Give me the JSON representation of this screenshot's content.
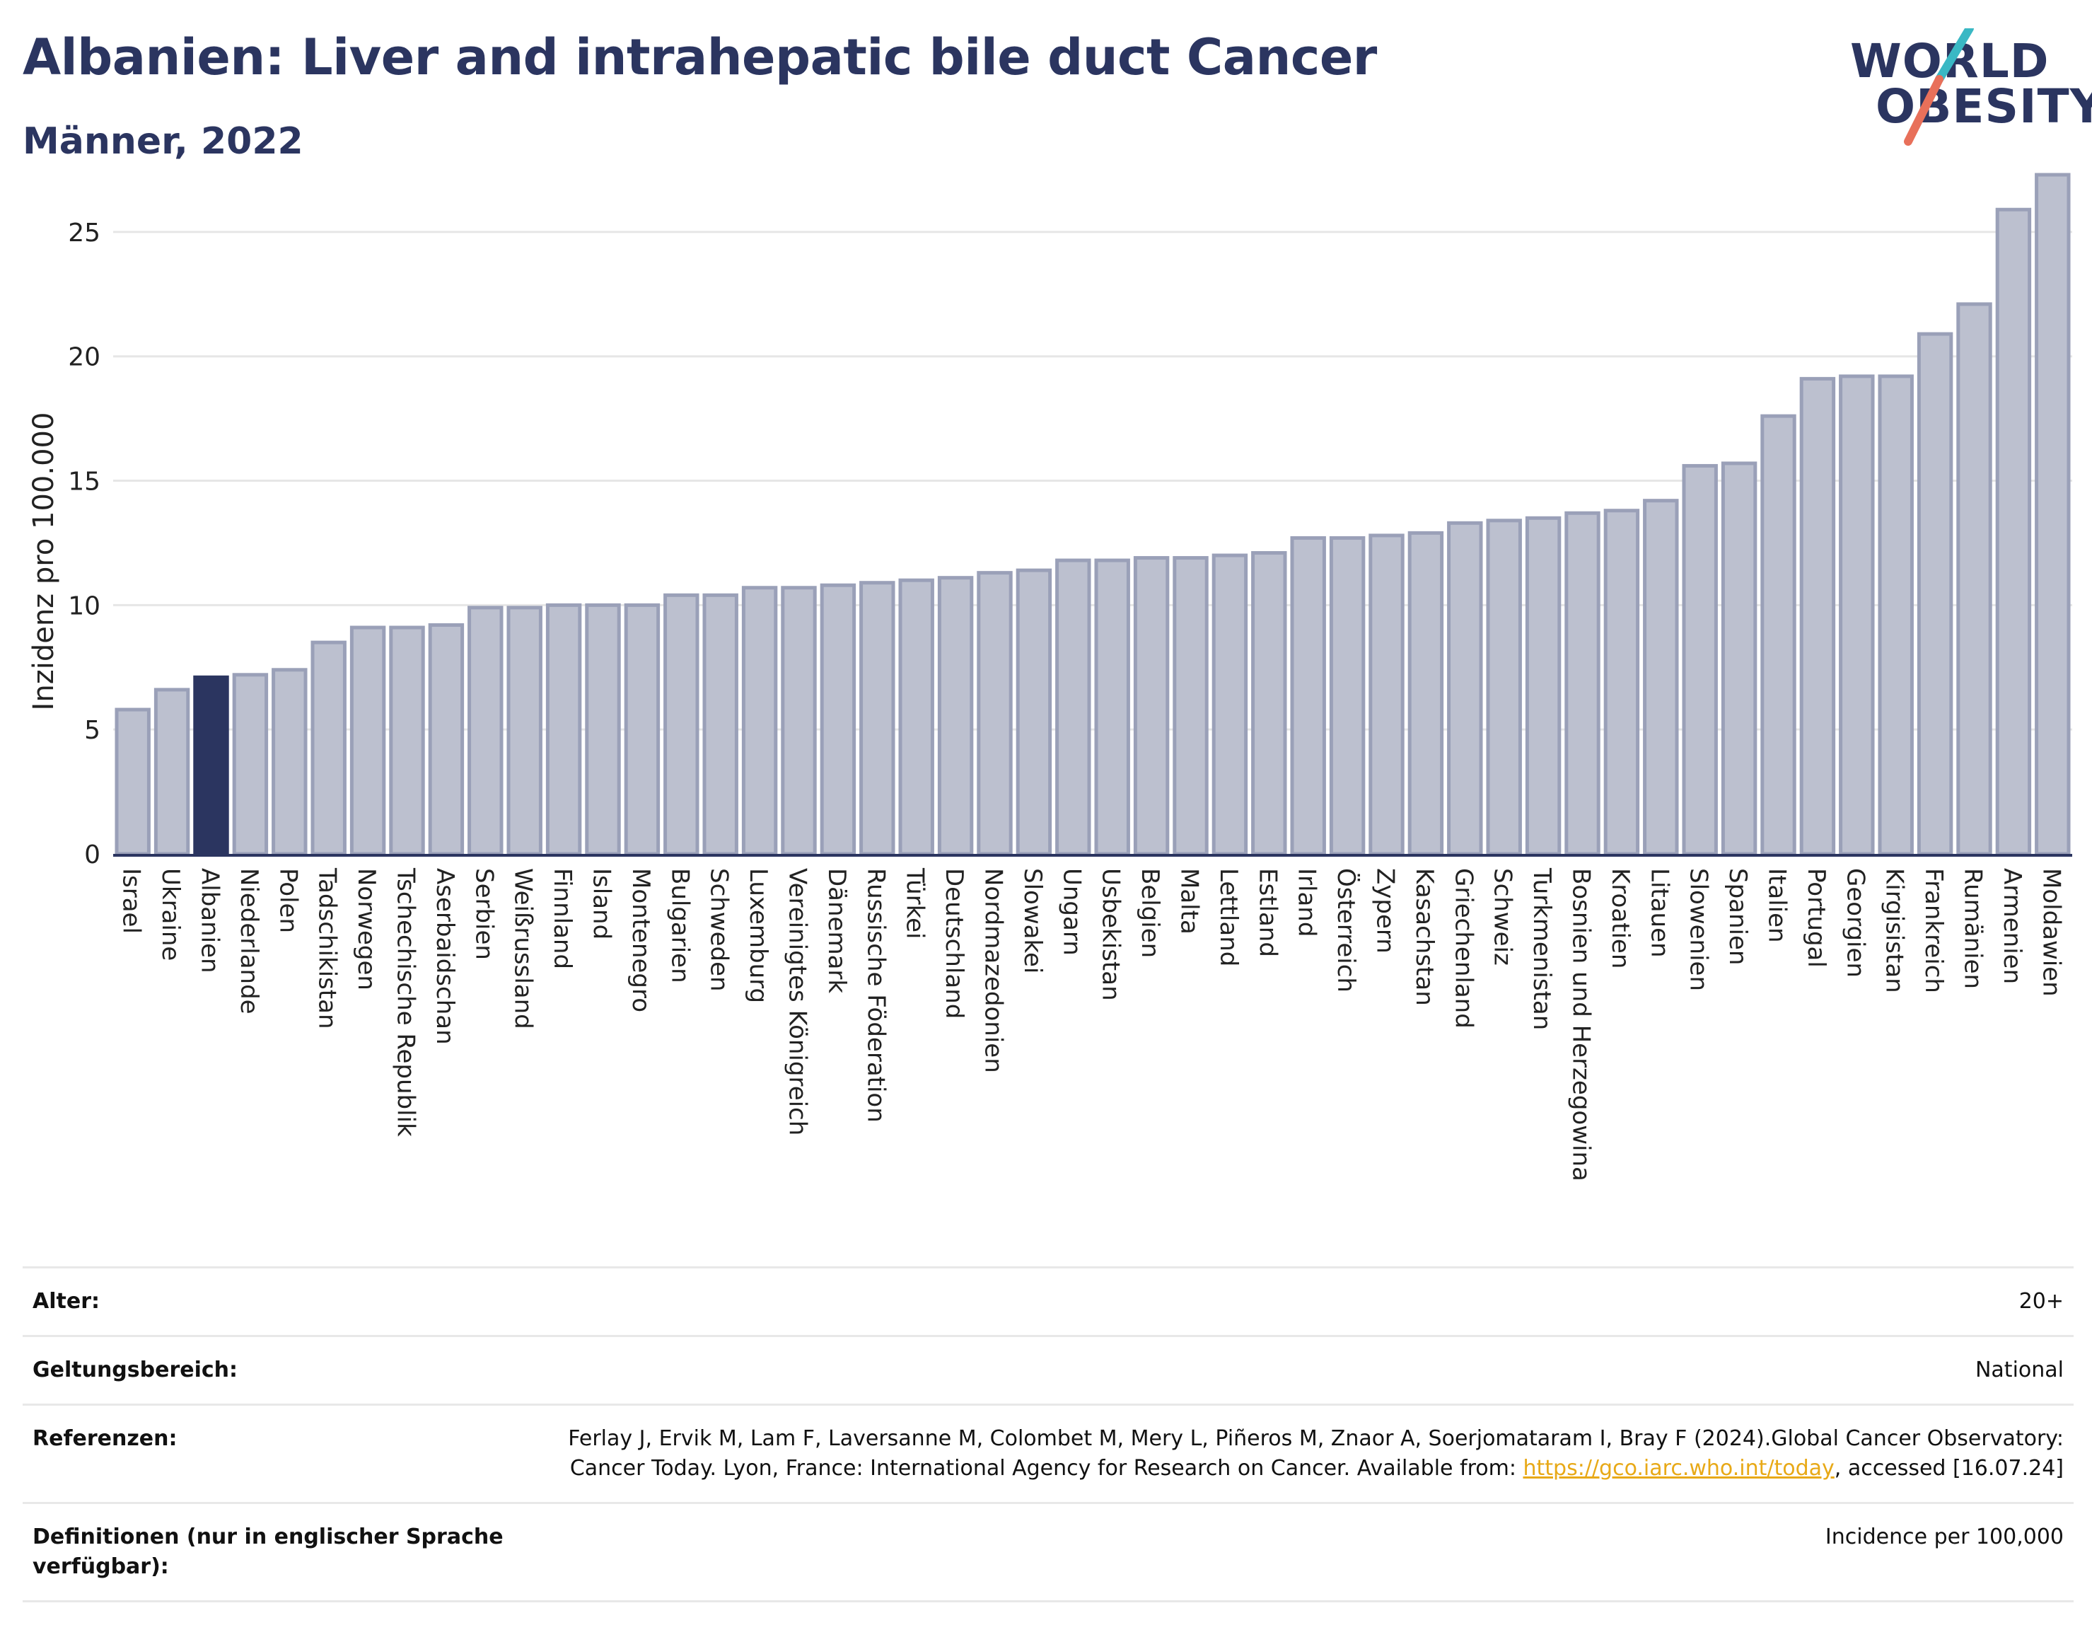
{
  "header": {
    "title": "Albanien: Liver and intrahepatic bile duct Cancer",
    "subtitle": "Männer, 2022"
  },
  "logo": {
    "line1": "WORLD",
    "line2": "OBESITY",
    "slash_colors": [
      "#3ab8c4",
      "#e8705a"
    ]
  },
  "chart_data": {
    "type": "bar",
    "title": "Albanien: Liver and intrahepatic bile duct Cancer",
    "subtitle": "Männer, 2022",
    "xlabel": "",
    "ylabel": "Inzidenz pro 100.000",
    "ylim": [
      0,
      27.5
    ],
    "yticks": [
      0,
      5,
      10,
      15,
      20,
      25
    ],
    "grid": true,
    "highlight": "Albanien",
    "colors": {
      "bar": "#bcc0cf",
      "bar_edge": "#9aa0b8",
      "highlight": "#2b3560",
      "grid": "#e6e6e6",
      "axis": "#2b3560"
    },
    "categories": [
      "Israel",
      "Ukraine",
      "Albanien",
      "Niederlande",
      "Polen",
      "Tadschikistan",
      "Norwegen",
      "Tschechische Republik",
      "Aserbaidschan",
      "Serbien",
      "Weißrussland",
      "Finnland",
      "Island",
      "Montenegro",
      "Bulgarien",
      "Schweden",
      "Luxemburg",
      "Vereinigtes Königreich",
      "Dänemark",
      "Russische Föderation",
      "Türkei",
      "Deutschland",
      "Nordmazedonien",
      "Slowakei",
      "Ungarn",
      "Usbekistan",
      "Belgien",
      "Malta",
      "Lettland",
      "Estland",
      "Irland",
      "Österreich",
      "Zypern",
      "Kasachstan",
      "Griechenland",
      "Schweiz",
      "Turkmenistan",
      "Bosnien und Herzegowina",
      "Kroatien",
      "Litauen",
      "Slowenien",
      "Spanien",
      "Italien",
      "Portugal",
      "Georgien",
      "Kirgisistan",
      "Frankreich",
      "Rumänien",
      "Armenien",
      "Moldawien"
    ],
    "values": [
      5.8,
      6.6,
      7.1,
      7.2,
      7.4,
      8.5,
      9.1,
      9.1,
      9.2,
      9.9,
      9.9,
      10.0,
      10.0,
      10.0,
      10.4,
      10.4,
      10.7,
      10.7,
      10.8,
      10.9,
      11.0,
      11.1,
      11.3,
      11.4,
      11.8,
      11.8,
      11.9,
      11.9,
      12.0,
      12.1,
      12.7,
      12.7,
      12.8,
      12.9,
      13.3,
      13.4,
      13.5,
      13.7,
      13.8,
      14.2,
      15.6,
      15.7,
      17.6,
      19.1,
      19.2,
      19.2,
      20.9,
      22.1,
      25.9,
      27.3
    ]
  },
  "info": {
    "rows": [
      {
        "label": "Alter:",
        "value": "20+"
      },
      {
        "label": "Geltungsbereich:",
        "value": "National"
      },
      {
        "label": "Referenzen:",
        "value": "Ferlay J, Ervik M, Lam F, Laversanne M, Colombet M, Mery L, Piñeros M, Znaor A, Soerjomataram I, Bray F (2024).Global Cancer Observatory: Cancer Today. Lyon, France: International Agency for Research on Cancer. Available from: ",
        "link": "https://gco.iarc.who.int/today",
        "suffix": ", accessed [16.07.24]"
      },
      {
        "label": "Definitionen (nur in englischer Sprache verfügbar):",
        "value": "Incidence per 100,000"
      }
    ]
  }
}
